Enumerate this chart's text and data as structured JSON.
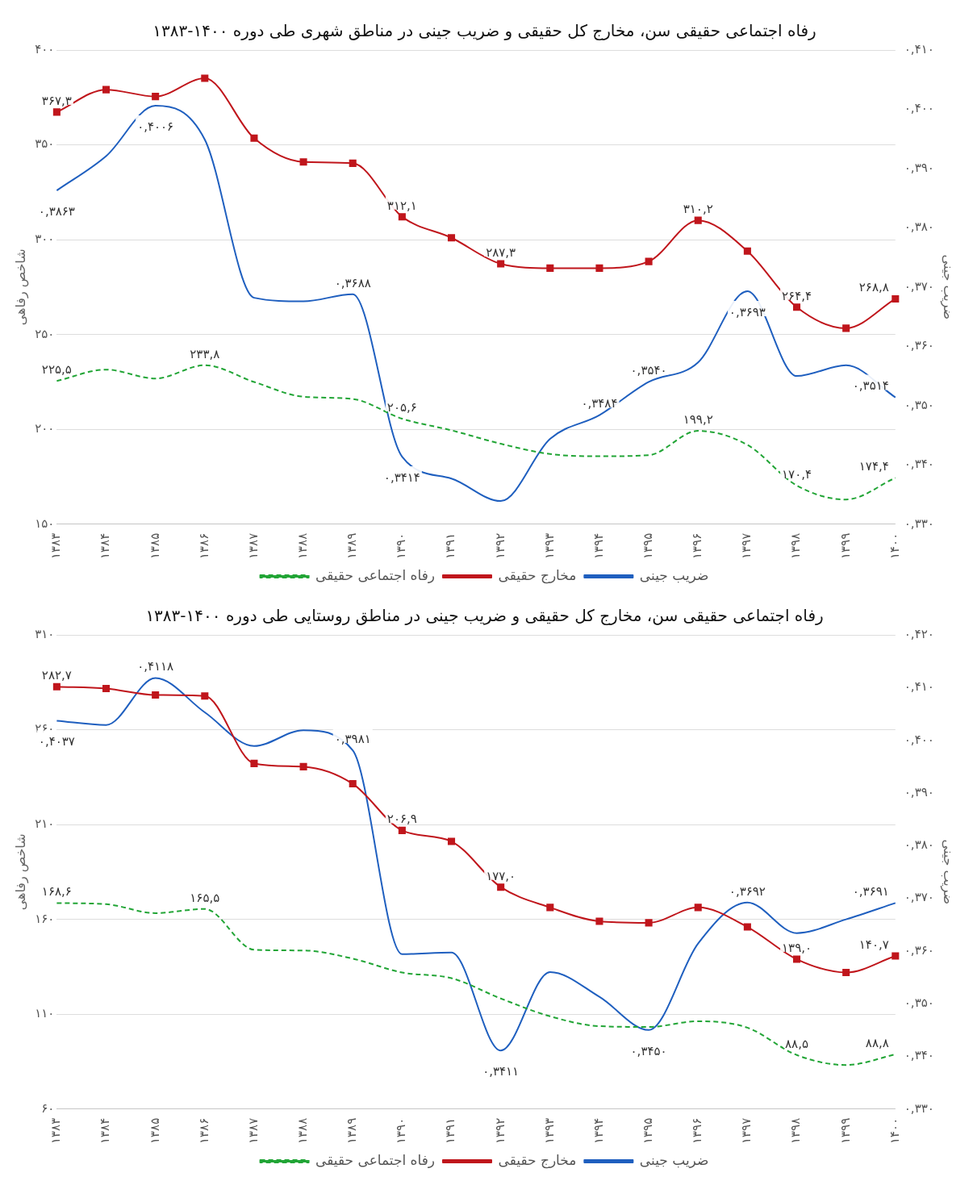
{
  "chart_data": [
    {
      "type": "line",
      "title": "رفاه اجتماعی حقیقی سن، مخارج کل حقیقی و ضریب جینی در مناطق شهری طی دوره ۱۴۰۰-۱۳۸۳",
      "ylabel": "شاخص رفاهی",
      "y2label": "ضریب جینی",
      "categories": [
        "۱۳۸۳",
        "۱۳۸۴",
        "۱۳۸۵",
        "۱۳۸۶",
        "۱۳۸۷",
        "۱۳۸۸",
        "۱۳۸۹",
        "۱۳۹۰",
        "۱۳۹۱",
        "۱۳۹۲",
        "۱۳۹۳",
        "۱۳۹۴",
        "۱۳۹۵",
        "۱۳۹۶",
        "۱۳۹۷",
        "۱۳۹۸",
        "۱۳۹۹",
        "۱۴۰۰"
      ],
      "series": [
        {
          "name": "رفاه اجتماعی حقیقی",
          "color": "#22a536",
          "line_style": "dashed",
          "marker": "none",
          "values": [
            225.5,
            231.5,
            226.8,
            233.8,
            225,
            217.2,
            216,
            205.6,
            199.5,
            192.4,
            187,
            185.8,
            186.4,
            199.2,
            191.8,
            170.4,
            163,
            174.4
          ],
          "value_labels": [
            "۲۲۵,۵",
            null,
            null,
            "۲۳۳,۸",
            null,
            null,
            null,
            "۲۰۵,۶",
            null,
            null,
            null,
            null,
            null,
            "۱۹۹,۲",
            null,
            "۱۷۰,۴",
            null,
            "۱۷۴,۴"
          ]
        },
        {
          "name": "مخارج حقیقی",
          "color": "#c0161c",
          "line_style": "solid",
          "marker": "square",
          "values": [
            367.3,
            379.1,
            375.5,
            385.1,
            353.5,
            341,
            340.3,
            312.1,
            301,
            287.3,
            285,
            285,
            288.5,
            310.2,
            294,
            264.4,
            253.3,
            268.8
          ],
          "value_labels": [
            "۳۶۷,۳",
            null,
            null,
            null,
            null,
            null,
            null,
            "۳۱۲,۱",
            null,
            "۲۸۷,۳",
            null,
            null,
            null,
            "۳۱۰,۲",
            null,
            "۲۶۴,۴",
            null,
            "۲۶۸,۸"
          ]
        },
        {
          "name": "ضریب جینی",
          "color": "#1f5fbf",
          "line_style": "solid",
          "marker": "none",
          "axis": "y2",
          "values": [
            0.3863,
            0.3921,
            0.4006,
            0.3949,
            0.3682,
            0.3676,
            0.3688,
            0.3414,
            0.3377,
            0.3339,
            0.3444,
            0.3484,
            0.354,
            0.3573,
            0.3693,
            0.355,
            0.3568,
            0.3514
          ],
          "value_labels": [
            "۰,۳۸۶۳",
            null,
            "۰,۴۰۰۶",
            null,
            null,
            null,
            "۰,۳۶۸۸",
            "۰,۳۴۱۴",
            null,
            null,
            null,
            "۰,۳۴۸۴",
            "۰,۳۵۴۰",
            null,
            "۰,۳۶۹۳",
            null,
            null,
            "۰,۳۵۱۴"
          ]
        }
      ],
      "ylim": [
        150,
        400
      ],
      "yticks": [
        {
          "value": 150,
          "label": "۱۵۰"
        },
        {
          "value": 200,
          "label": "۲۰۰"
        },
        {
          "value": 250,
          "label": "۲۵۰"
        },
        {
          "value": 300,
          "label": "۳۰۰"
        },
        {
          "value": 350,
          "label": "۳۵۰"
        },
        {
          "value": 400,
          "label": "۴۰۰"
        }
      ],
      "y2lim": [
        0.33,
        0.41
      ],
      "y2ticks": [
        {
          "value": 0.33,
          "label": "۰,۳۳۰"
        },
        {
          "value": 0.34,
          "label": "۰,۳۴۰"
        },
        {
          "value": 0.35,
          "label": "۰,۳۵۰"
        },
        {
          "value": 0.36,
          "label": "۰,۳۶۰"
        },
        {
          "value": 0.37,
          "label": "۰,۳۷۰"
        },
        {
          "value": 0.38,
          "label": "۰,۳۸۰"
        },
        {
          "value": 0.39,
          "label": "۰,۳۹۰"
        },
        {
          "value": 0.4,
          "label": "۰,۴۰۰"
        },
        {
          "value": 0.41,
          "label": "۰,۴۱۰"
        }
      ],
      "grid": "y",
      "legend": "bottom"
    },
    {
      "type": "line",
      "title": "رفاه اجتماعی حقیقی سن، مخارج کل حقیقی و ضریب جینی در مناطق روستایی طی دوره ۱۴۰۰-۱۳۸۳",
      "ylabel": "شاخص رفاهی",
      "y2label": "ضریب جینی",
      "categories": [
        "۱۳۸۳",
        "۱۳۸۴",
        "۱۳۸۵",
        "۱۳۸۶",
        "۱۳۸۷",
        "۱۳۸۸",
        "۱۳۸۹",
        "۱۳۹۰",
        "۱۳۹۱",
        "۱۳۹۲",
        "۱۳۹۳",
        "۱۳۹۴",
        "۱۳۹۵",
        "۱۳۹۶",
        "۱۳۹۷",
        "۱۳۹۸",
        "۱۳۹۹",
        "۱۴۰۰"
      ],
      "series": [
        {
          "name": "رفاه اجتماعی حقیقی",
          "color": "#22a536",
          "line_style": "dashed",
          "marker": "none",
          "values": [
            168.6,
            168,
            163.3,
            165.5,
            144,
            143.6,
            139.3,
            132,
            129,
            118.3,
            108.9,
            103.7,
            103.3,
            106.3,
            102.9,
            88.5,
            83.2,
            88.8
          ],
          "value_labels": [
            "۱۶۸,۶",
            null,
            null,
            "۱۶۵,۵",
            null,
            null,
            null,
            null,
            null,
            null,
            null,
            null,
            null,
            null,
            null,
            "۸۸,۵",
            null,
            "۸۸,۸"
          ]
        },
        {
          "name": "مخارج حقیقی",
          "color": "#c0161c",
          "line_style": "solid",
          "marker": "square",
          "values": [
            282.7,
            281.7,
            278.3,
            277.8,
            242.2,
            240.5,
            231.5,
            206.9,
            201.1,
            177,
            166.3,
            159,
            158.2,
            166.3,
            156,
            139,
            132,
            140.7
          ],
          "value_labels": [
            "۲۸۲,۷",
            null,
            null,
            null,
            null,
            null,
            null,
            "۲۰۶,۹",
            null,
            "۱۷۷,۰",
            null,
            null,
            null,
            null,
            null,
            "۱۳۹,۰",
            null,
            "۱۴۰,۷"
          ]
        },
        {
          "name": "ضریب جینی",
          "color": "#1f5fbf",
          "line_style": "solid",
          "marker": "none",
          "axis": "y2",
          "values": [
            0.4037,
            0.4029,
            0.4118,
            0.4053,
            0.3989,
            0.4019,
            0.3981,
            0.3594,
            0.3597,
            0.3411,
            0.356,
            0.3513,
            0.345,
            0.3614,
            0.3692,
            0.3634,
            0.366,
            0.3691
          ],
          "value_labels": [
            "۰,۴۰۳۷",
            null,
            "۰,۴۱۱۸",
            null,
            null,
            null,
            "۰,۳۹۸۱",
            null,
            null,
            "۰,۳۴۱۱",
            null,
            null,
            "۰,۳۴۵۰",
            null,
            "۰,۳۶۹۲",
            null,
            null,
            "۰,۳۶۹۱"
          ]
        }
      ],
      "ylim": [
        60,
        310
      ],
      "yticks": [
        {
          "value": 60,
          "label": "۶۰"
        },
        {
          "value": 110,
          "label": "۱۱۰"
        },
        {
          "value": 160,
          "label": "۱۶۰"
        },
        {
          "value": 210,
          "label": "۲۱۰"
        },
        {
          "value": 260,
          "label": "۲۶۰"
        },
        {
          "value": 310,
          "label": "۳۱۰"
        }
      ],
      "y2lim": [
        0.33,
        0.42
      ],
      "y2ticks": [
        {
          "value": 0.33,
          "label": "۰,۳۳۰"
        },
        {
          "value": 0.34,
          "label": "۰,۳۴۰"
        },
        {
          "value": 0.35,
          "label": "۰,۳۵۰"
        },
        {
          "value": 0.36,
          "label": "۰,۳۶۰"
        },
        {
          "value": 0.37,
          "label": "۰,۳۷۰"
        },
        {
          "value": 0.38,
          "label": "۰,۳۸۰"
        },
        {
          "value": 0.39,
          "label": "۰,۳۹۰"
        },
        {
          "value": 0.4,
          "label": "۰,۴۰۰"
        },
        {
          "value": 0.41,
          "label": "۰,۴۱۰"
        },
        {
          "value": 0.42,
          "label": "۰,۴۲۰"
        }
      ],
      "grid": "y",
      "legend": "bottom"
    }
  ]
}
